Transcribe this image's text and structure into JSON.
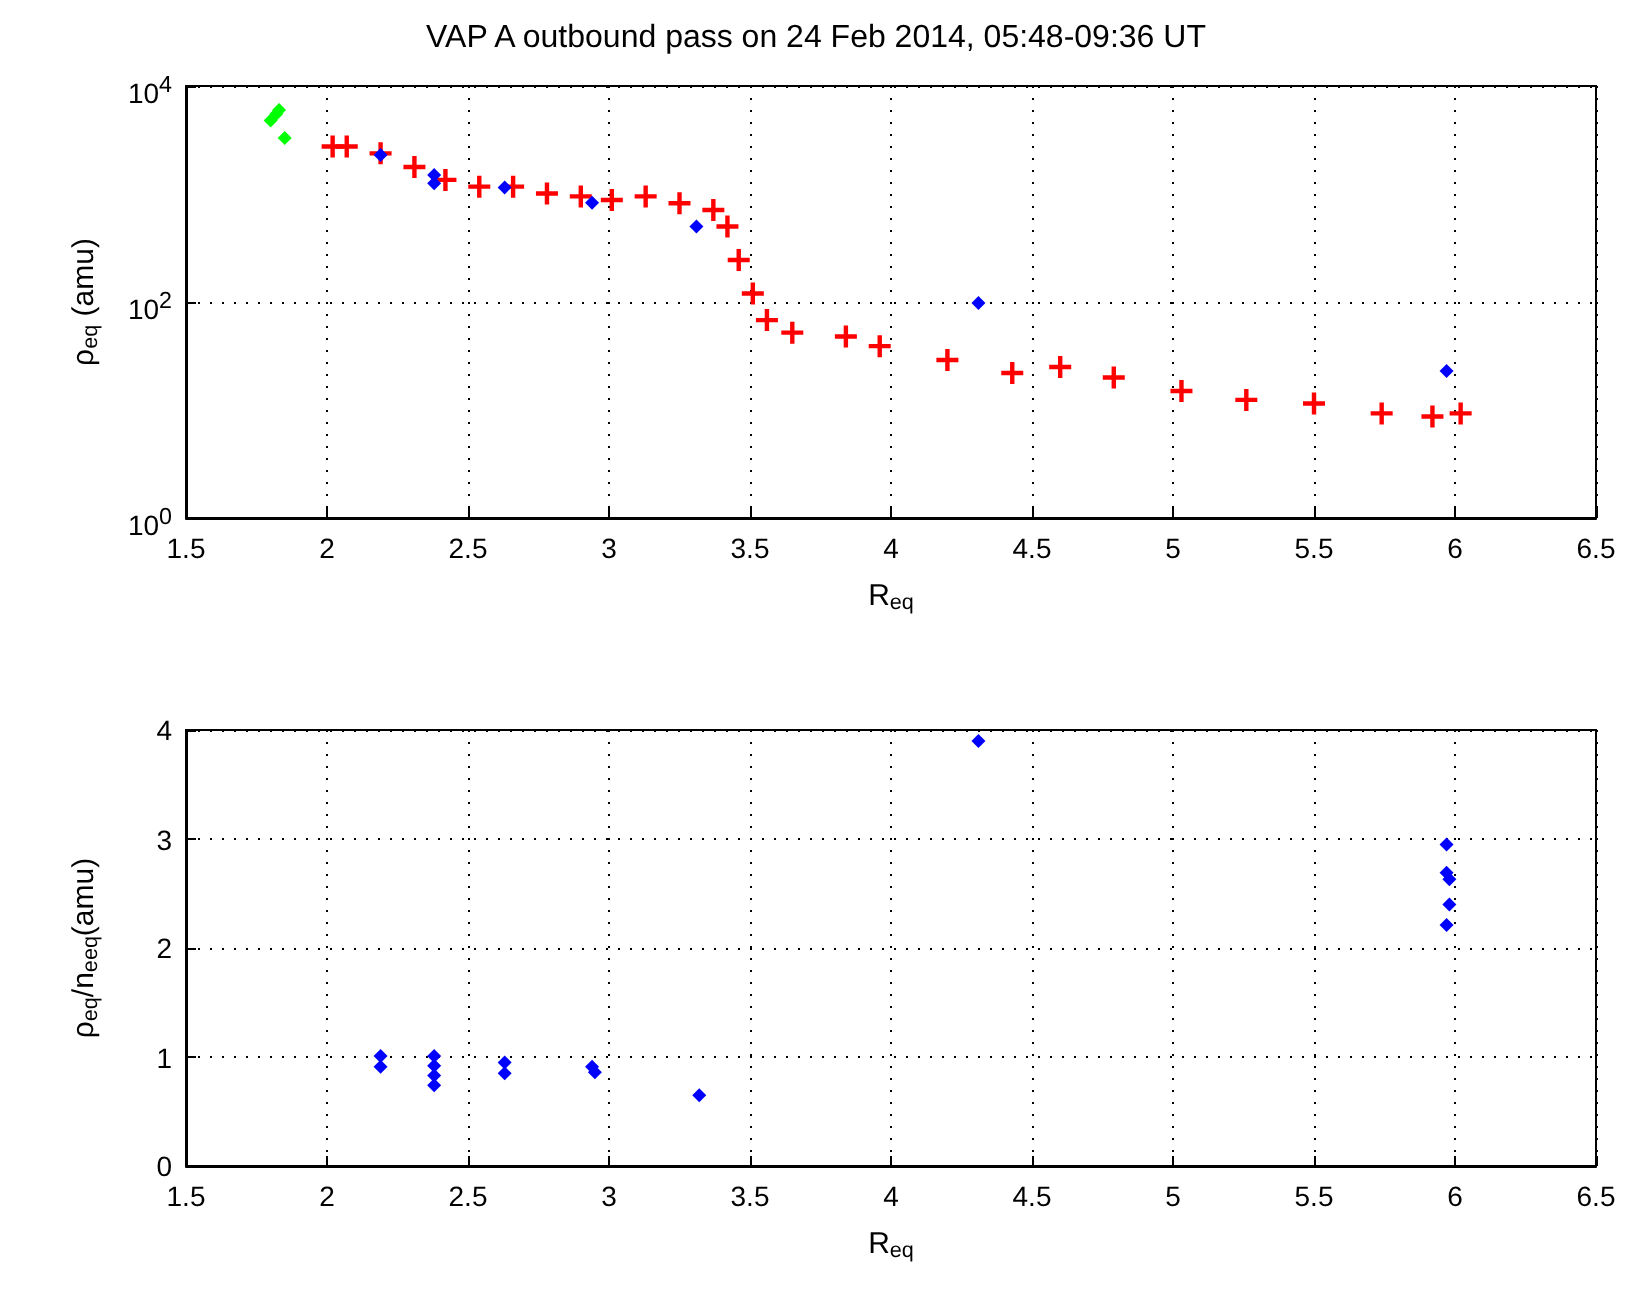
{
  "chart_data": [
    {
      "type": "scatter",
      "title": "VAP A outbound pass on 24 Feb 2014, 05:48-09:36 UT",
      "xlabel": "R$_{eq}$",
      "ylabel": "ρ$_{eq}$ (amu)",
      "log": "y",
      "grid": true,
      "xlim": [
        1.5,
        6.5
      ],
      "xticks": [
        1.5,
        2,
        2.5,
        3,
        3.5,
        4,
        4.5,
        5,
        5.5,
        6,
        6.5
      ],
      "ylim": [
        1,
        10000
      ],
      "yticks": [
        {
          "value": 1,
          "label": "10$^{0}$"
        },
        {
          "value": 100,
          "label": "10$^{2}$"
        },
        {
          "value": 10000,
          "label": "10$^{4}$"
        }
      ],
      "series": [
        {
          "color": "#00ff00",
          "marker": "diamond",
          "x": [
            1.8,
            1.82,
            1.83,
            1.85
          ],
          "values": [
            4800,
            5500,
            6000,
            3300
          ]
        },
        {
          "color": "#ff0000",
          "marker": "cross",
          "x": [
            2.02,
            2.07,
            2.19,
            2.31,
            2.42,
            2.54,
            2.66,
            2.78,
            2.9,
            3.01,
            3.13,
            3.25,
            3.37,
            3.42,
            3.46,
            3.51,
            3.56,
            3.65,
            3.84,
            3.96,
            4.2,
            4.43,
            4.6,
            4.79,
            5.03,
            5.26,
            5.5,
            5.74,
            5.92,
            6.02
          ],
          "values": [
            2750,
            2750,
            2380,
            1780,
            1350,
            1170,
            1170,
            1010,
            950,
            880,
            950,
            820,
            710,
            500,
            245,
            120,
            68,
            52,
            48,
            39,
            29,
            22,
            25,
            20,
            15,
            12.4,
            11.5,
            9.3,
            8.7,
            9.3
          ]
        },
        {
          "color": "#0000ff",
          "marker": "diamond",
          "x": [
            2.19,
            2.38,
            2.38,
            2.63,
            2.94,
            3.31,
            4.31,
            5.97
          ],
          "values": [
            2300,
            1500,
            1260,
            1150,
            830,
            500,
            98,
            23
          ]
        }
      ]
    },
    {
      "type": "scatter",
      "xlabel": "R$_{eq}$",
      "ylabel": "ρ$_{eq}$/n$_{eeq}$(amu)",
      "grid": true,
      "xlim": [
        1.5,
        6.5
      ],
      "xticks": [
        1.5,
        2,
        2.5,
        3,
        3.5,
        4,
        4.5,
        5,
        5.5,
        6,
        6.5
      ],
      "ylim": [
        0,
        4
      ],
      "yticks": [
        0,
        1,
        2,
        3,
        4
      ],
      "series": [
        {
          "color": "#0000ff",
          "marker": "diamond",
          "x": [
            2.19,
            2.19,
            2.38,
            2.38,
            2.38,
            2.38,
            2.63,
            2.63,
            2.94,
            2.95,
            3.32,
            4.31,
            5.97,
            5.97,
            5.98,
            5.98,
            5.97
          ],
          "values": [
            1.01,
            0.91,
            1.01,
            0.92,
            0.83,
            0.74,
            0.95,
            0.85,
            0.91,
            0.86,
            0.65,
            3.9,
            2.95,
            2.69,
            2.63,
            2.4,
            2.21
          ]
        }
      ]
    }
  ]
}
